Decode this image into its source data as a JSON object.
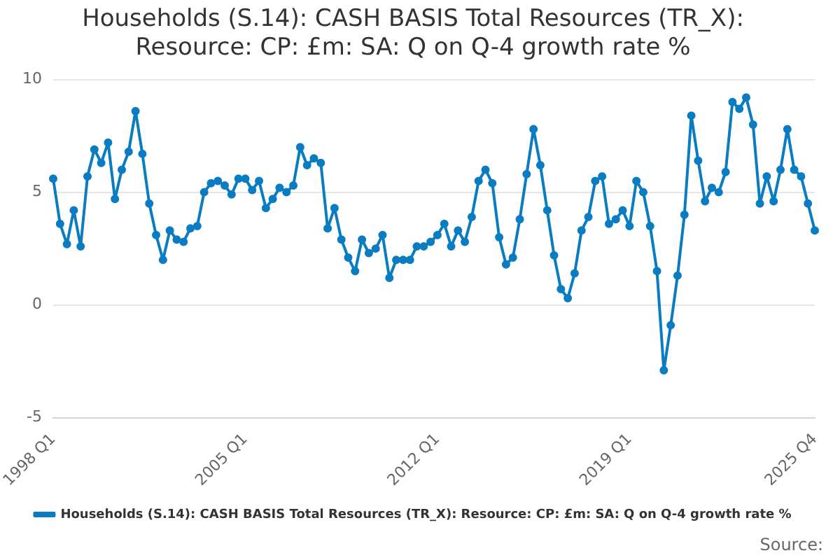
{
  "chart_data": {
    "type": "line",
    "title": "Households (S.14): CASH BASIS Total Resources (TR_X): Resource: CP: £m: SA: Q on Q-4 growth rate %",
    "categories": [
      "1998 Q1",
      null,
      null,
      null,
      null,
      null,
      null,
      null,
      null,
      null,
      null,
      null,
      null,
      null,
      null,
      null,
      null,
      null,
      null,
      null,
      null,
      null,
      null,
      null,
      null,
      null,
      null,
      null,
      "2005 Q1",
      null,
      null,
      null,
      null,
      null,
      null,
      null,
      null,
      null,
      null,
      null,
      null,
      null,
      null,
      null,
      null,
      null,
      null,
      null,
      null,
      null,
      null,
      null,
      null,
      null,
      null,
      null,
      "2012 Q1",
      null,
      null,
      null,
      null,
      null,
      null,
      null,
      null,
      null,
      null,
      null,
      null,
      null,
      null,
      null,
      null,
      null,
      null,
      null,
      null,
      null,
      null,
      null,
      null,
      null,
      null,
      null,
      "2019 Q1",
      null,
      null,
      null,
      null,
      null,
      null,
      null,
      null,
      null,
      null,
      null,
      null,
      null,
      null,
      null,
      null,
      null,
      null,
      null,
      null,
      null,
      null,
      null,
      null,
      null,
      null,
      "2025 Q4"
    ],
    "series": [
      {
        "name": "Households (S.14): CASH BASIS Total Resources (TR_X): Resource: CP: £m: SA: Q on Q-4 growth rate %",
        "color": "#0a7cc1",
        "values": [
          5.6,
          3.6,
          2.7,
          4.2,
          2.6,
          5.7,
          6.9,
          6.3,
          7.2,
          4.7,
          6.0,
          6.8,
          8.6,
          6.7,
          4.5,
          3.1,
          2.0,
          3.3,
          2.9,
          2.8,
          3.4,
          3.5,
          5.0,
          5.4,
          5.5,
          5.3,
          4.9,
          5.6,
          5.6,
          5.1,
          5.5,
          4.3,
          4.7,
          5.2,
          5.0,
          5.3,
          7.0,
          6.2,
          6.5,
          6.3,
          3.4,
          4.3,
          2.9,
          2.1,
          1.5,
          2.9,
          2.3,
          2.5,
          3.1,
          1.2,
          2.0,
          2.0,
          2.0,
          2.6,
          2.6,
          2.8,
          3.1,
          3.6,
          2.6,
          3.3,
          2.8,
          3.9,
          5.5,
          6.0,
          5.4,
          3.0,
          1.8,
          2.1,
          3.8,
          5.8,
          7.8,
          6.2,
          4.2,
          2.2,
          0.7,
          0.3,
          1.4,
          3.3,
          3.9,
          5.5,
          5.7,
          3.6,
          3.8,
          4.2,
          3.5,
          5.5,
          5.0,
          3.5,
          1.5,
          -2.9,
          -0.9,
          1.3,
          4.0,
          8.4,
          6.4,
          4.6,
          5.2,
          5.0,
          5.9,
          9.0,
          8.7,
          9.2,
          8.0,
          4.5,
          5.7,
          4.6,
          6.0,
          7.8,
          6.0,
          5.7,
          4.5,
          3.3
        ]
      }
    ],
    "ylim": [
      -5,
      10
    ],
    "yticks": [
      -5,
      0,
      5,
      10
    ],
    "grid": "y",
    "legend": "bottom",
    "marker": "circle",
    "line_style": "solid",
    "annotations": [
      "Source:"
    ]
  }
}
